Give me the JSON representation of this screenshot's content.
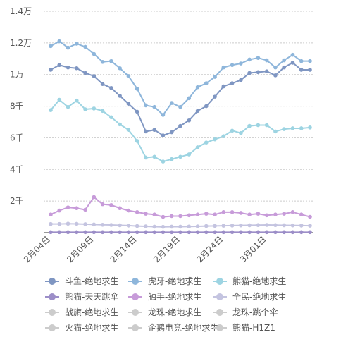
{
  "chart_data": {
    "type": "line",
    "categories": [
      "2月04日",
      null,
      null,
      null,
      null,
      "2月09日",
      null,
      null,
      null,
      null,
      "2月14日",
      null,
      null,
      null,
      null,
      "2月19日",
      null,
      null,
      null,
      null,
      "2月24日",
      null,
      null,
      null,
      null,
      "3月01日",
      null,
      null,
      null,
      null,
      null
    ],
    "ylim": [
      0,
      14000
    ],
    "yticks": [
      {
        "value": 2000,
        "label": "2千"
      },
      {
        "value": 4000,
        "label": "4千"
      },
      {
        "value": 6000,
        "label": "6千"
      },
      {
        "value": 8000,
        "label": "8千"
      },
      {
        "value": 10000,
        "label": "1万"
      },
      {
        "value": 12000,
        "label": "1.2万"
      },
      {
        "value": 14000,
        "label": "1.4万"
      }
    ],
    "grid": true,
    "series": [
      {
        "name": "斗鱼-绝地求生",
        "color": "#7f96c2",
        "values": [
          10300,
          10600,
          10450,
          10400,
          10100,
          9900,
          9400,
          9150,
          8650,
          8150,
          7650,
          6400,
          6500,
          6150,
          6350,
          6750,
          7100,
          7700,
          8000,
          8600,
          9250,
          9450,
          9650,
          10100,
          10150,
          10200,
          9950,
          10450,
          10750,
          10300,
          10300
        ]
      },
      {
        "name": "虎牙-绝地求生",
        "color": "#8eb6db",
        "values": [
          11800,
          12100,
          11700,
          11950,
          11750,
          11300,
          10800,
          10850,
          10400,
          9900,
          9100,
          8050,
          7950,
          7450,
          8200,
          7950,
          8500,
          9200,
          9450,
          9850,
          10450,
          10600,
          10700,
          10950,
          11050,
          10900,
          10450,
          10900,
          11250,
          10850,
          10850
        ]
      },
      {
        "name": "熊猫-绝地求生",
        "color": "#9dd4e2",
        "values": [
          7750,
          8400,
          7950,
          8350,
          7800,
          7850,
          7700,
          7300,
          6850,
          6500,
          5800,
          4750,
          4800,
          4500,
          4650,
          4800,
          4950,
          5400,
          5700,
          5900,
          6100,
          6450,
          6300,
          6750,
          6800,
          6800,
          6400,
          6550,
          6600,
          6600,
          6650
        ]
      },
      {
        "name": "熊猫-天天跳伞",
        "color": "#9c8ec8",
        "values": [
          30,
          30,
          30,
          30,
          30,
          30,
          30,
          30,
          30,
          30,
          30,
          30,
          30,
          30,
          30,
          30,
          30,
          30,
          30,
          30,
          30,
          30,
          30,
          30,
          30,
          30,
          30,
          30,
          30,
          30,
          30
        ]
      },
      {
        "name": "触手-绝地求生",
        "color": "#c79bd9",
        "values": [
          1150,
          1400,
          1600,
          1550,
          1450,
          2250,
          1800,
          1750,
          1550,
          1400,
          1300,
          1200,
          1150,
          1000,
          1050,
          1050,
          1100,
          1150,
          1200,
          1150,
          1300,
          1300,
          1250,
          1150,
          1200,
          1100,
          1150,
          1200,
          1300,
          1150,
          1000
        ]
      },
      {
        "name": "全民-绝地求生",
        "color": "#c4c4e0",
        "values": [
          550,
          550,
          570,
          560,
          540,
          520,
          500,
          490,
          470,
          450,
          420,
          400,
          380,
          370,
          380,
          380,
          390,
          400,
          420,
          430,
          440,
          450,
          460,
          470,
          480,
          490,
          480,
          470,
          460,
          450,
          440
        ]
      }
    ],
    "hidden_series": [
      "战旗-绝地求生",
      "龙珠-绝地求生",
      "龙珠-跳个伞",
      "火猫-绝地求生",
      "企鹅电竞-绝地求生",
      "熊猫-H1Z1"
    ],
    "hidden_color": "#cccccc"
  }
}
